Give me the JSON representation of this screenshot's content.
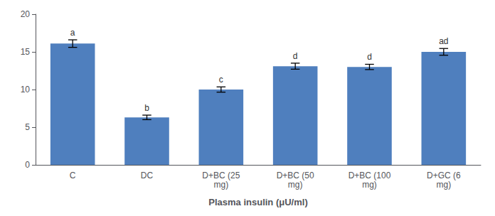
{
  "chart_data": {
    "type": "bar",
    "xlabel": "Plasma insulin (μU/ml)",
    "categories": [
      "C",
      "DC",
      "D+BC (25\nmg)",
      "D+BC (50\nmg)",
      "D+BC (100\nmg)",
      "D+GC (6\nmg)"
    ],
    "values": [
      16.1,
      6.3,
      10.0,
      13.1,
      13.0,
      15.0
    ],
    "errors": [
      0.5,
      0.3,
      0.35,
      0.4,
      0.35,
      0.45
    ],
    "annotations": [
      "a",
      "b",
      "c",
      "d",
      "d",
      "ad"
    ],
    "color": "#4f7fbe",
    "ylim": [
      0,
      20
    ],
    "yticks": [
      0,
      5,
      10,
      15,
      20
    ],
    "grid": false
  }
}
